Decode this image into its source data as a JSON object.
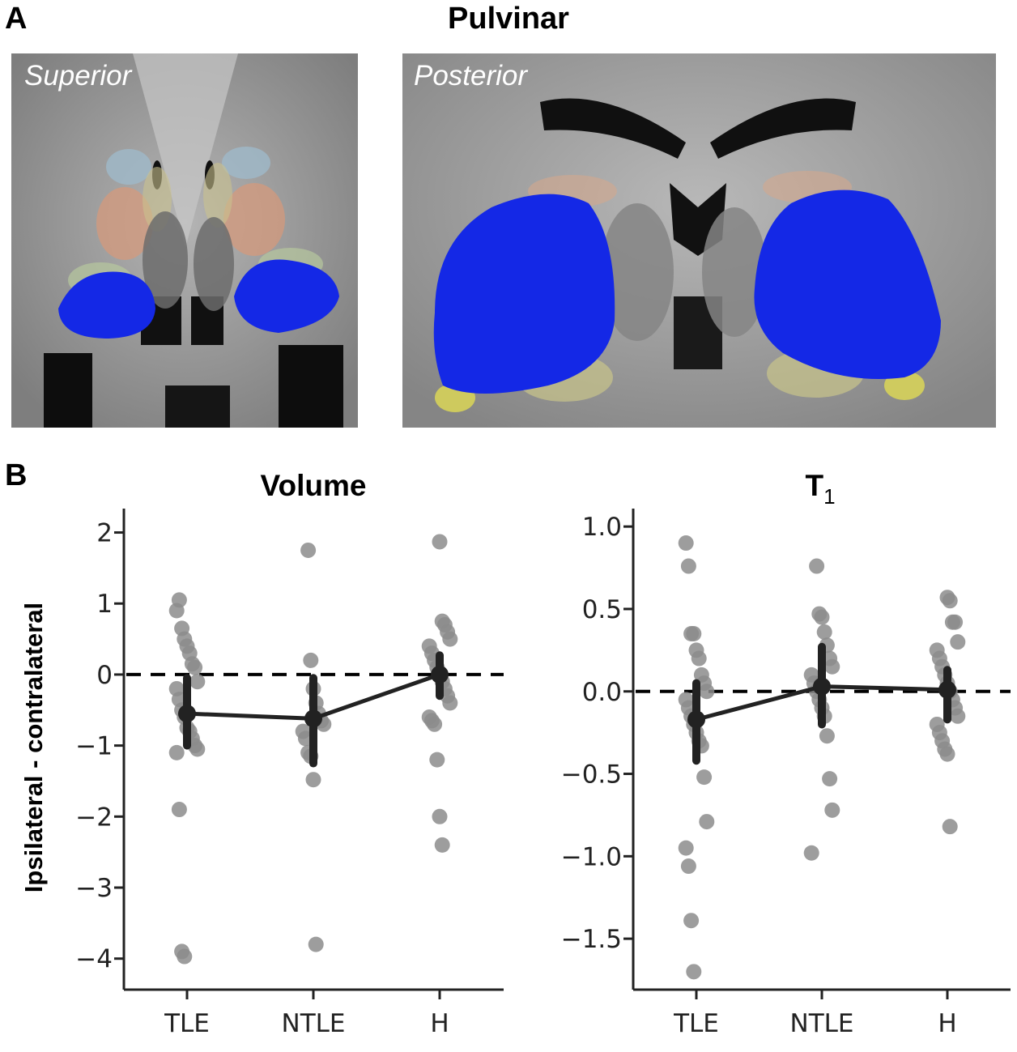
{
  "panel_a": {
    "letter": "A",
    "title": "Pulvinar",
    "views": [
      "Superior",
      "Posterior"
    ]
  },
  "panel_b": {
    "letter": "B"
  },
  "colors": {
    "pulvinar": "#1428e6",
    "marker": "#8c8c8c",
    "line": "#222222"
  },
  "chart_data": [
    {
      "type": "scatter",
      "title": "Volume",
      "ylabel": "Ipsilateral - contralateral",
      "categories": [
        "TLE",
        "NTLE",
        "H"
      ],
      "ylim": [
        -4.3,
        2.2
      ],
      "yticks": [
        2,
        1,
        0,
        -1,
        -2,
        -3,
        -4
      ],
      "ytick_labels": [
        "2",
        "1",
        "0",
        "−1",
        "−2",
        "−3",
        "−4"
      ],
      "reference_line": 0,
      "means": [
        -0.55,
        -0.62,
        0.0
      ],
      "ci": [
        [
          -1.0,
          -0.05
        ],
        [
          -1.25,
          -0.05
        ],
        [
          -0.3,
          0.27
        ]
      ],
      "points": [
        [
          0.9,
          1.05,
          0.65,
          0.5,
          0.4,
          0.3,
          0.15,
          0.1,
          -0.1,
          -0.2,
          -0.35,
          -0.5,
          -0.6,
          -0.75,
          -0.8,
          -0.9,
          -1.0,
          -1.05,
          -1.1,
          -1.9,
          -3.9,
          -3.97
        ],
        [
          1.75,
          0.2,
          -0.2,
          -0.4,
          -0.55,
          -0.65,
          -0.7,
          -0.8,
          -0.9,
          -1.1,
          -1.15,
          -1.48,
          -3.8
        ],
        [
          1.87,
          0.75,
          0.7,
          0.6,
          0.5,
          0.4,
          0.3,
          0.2,
          0.1,
          0.0,
          -0.1,
          -0.2,
          -0.3,
          -0.4,
          -0.6,
          -0.65,
          -0.7,
          -1.2,
          -2.0,
          -2.4
        ]
      ]
    },
    {
      "type": "scatter",
      "title": "T",
      "title_sub": "1",
      "ylabel": "",
      "categories": [
        "TLE",
        "NTLE",
        "H"
      ],
      "ylim": [
        -1.75,
        1.05
      ],
      "yticks": [
        1.0,
        0.5,
        0.0,
        -0.5,
        -1.0,
        -1.5
      ],
      "ytick_labels": [
        "1.0",
        "0.5",
        "0.0",
        "−0.5",
        "−1.0",
        "−1.5"
      ],
      "reference_line": 0,
      "means": [
        -0.17,
        0.03,
        0.01
      ],
      "ci": [
        [
          -0.42,
          0.05
        ],
        [
          -0.2,
          0.27
        ],
        [
          -0.17,
          0.13
        ]
      ],
      "points": [
        [
          0.9,
          0.76,
          0.35,
          0.35,
          0.25,
          0.2,
          0.1,
          0.05,
          0.0,
          -0.05,
          -0.1,
          -0.15,
          -0.2,
          -0.25,
          -0.3,
          -0.33,
          -0.52,
          -0.79,
          -0.95,
          -1.06,
          -1.39,
          -1.7
        ],
        [
          0.76,
          0.47,
          0.45,
          0.36,
          0.28,
          0.2,
          0.15,
          0.1,
          0.05,
          0.0,
          -0.05,
          -0.1,
          -0.15,
          -0.27,
          -0.53,
          -0.72,
          -0.98
        ],
        [
          0.57,
          0.55,
          0.42,
          0.42,
          0.3,
          0.25,
          0.2,
          0.15,
          0.1,
          0.05,
          0.0,
          -0.05,
          -0.1,
          -0.15,
          -0.2,
          -0.25,
          -0.3,
          -0.35,
          -0.38,
          -0.82
        ]
      ]
    }
  ]
}
